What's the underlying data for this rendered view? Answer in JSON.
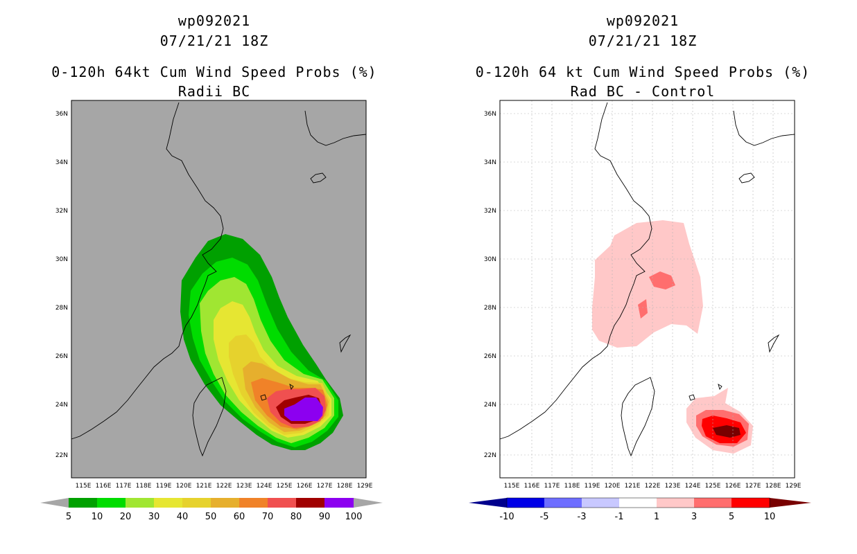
{
  "left_panel": {
    "line1": "wp092021",
    "line2": "07/21/21 18Z",
    "line3": "0-120h 64kt Cum Wind Speed Probs (%)",
    "line4": "Radii BC",
    "map_background": "#a6a6a6",
    "colorbar": {
      "labels": [
        "5",
        "10",
        "20",
        "30",
        "40",
        "50",
        "60",
        "70",
        "80",
        "90",
        "100"
      ],
      "colors": [
        "#00a000",
        "#00dc00",
        "#a0e632",
        "#e6e632",
        "#e6d22d",
        "#e6af2d",
        "#f08228",
        "#f05050",
        "#a00000",
        "#8c00f0"
      ],
      "under_color": "#a6a6a6",
      "over_color": "#a6a6a6"
    }
  },
  "right_panel": {
    "line1": "wp092021",
    "line2": "07/21/21 18Z",
    "line3": "0-120h 64 kt Cum Wind Speed Probs (%)",
    "line4": "Rad BC - Control",
    "map_background": "#ffffff",
    "colorbar": {
      "labels": [
        "-10",
        "-5",
        "-3",
        "-1",
        "1",
        "3",
        "5",
        "10"
      ],
      "colors": [
        "#0000e6",
        "#6e6eff",
        "#c8c8ff",
        "#ffffff",
        "#ffc8c8",
        "#ff6e6e",
        "#ff0000"
      ],
      "under_color": "#00008c",
      "over_color": "#780000"
    }
  },
  "axes": {
    "lat_labels": [
      "36N",
      "34N",
      "32N",
      "30N",
      "28N",
      "26N",
      "24N",
      "22N"
    ],
    "lon_labels": [
      "115E",
      "116E",
      "117E",
      "118E",
      "119E",
      "120E",
      "121E",
      "122E",
      "123E",
      "124E",
      "125E",
      "126E",
      "127E",
      "128E",
      "129E"
    ]
  }
}
